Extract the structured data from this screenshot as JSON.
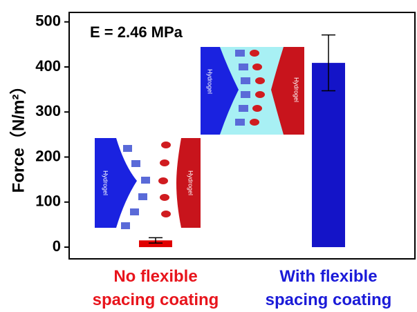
{
  "chart_data": {
    "type": "bar",
    "annotation": "E = 2.46 MPa",
    "y_label": "Force（N/m²）",
    "categories": [
      "No flexible spacing coating",
      "With flexible spacing coating"
    ],
    "values": [
      15,
      409
    ],
    "errors": [
      6,
      62
    ],
    "colors": [
      "#e00000",
      "#1414c8"
    ],
    "label_colors": [
      "#e8141c",
      "#1a1ad8"
    ],
    "ylim": [
      -26,
      521
    ],
    "yticks": [
      0,
      100,
      200,
      300,
      400,
      500
    ],
    "schematic_labels": [
      "Hydrogel",
      "Hydrogel",
      "Hydrogel",
      "Hydrogel"
    ]
  }
}
